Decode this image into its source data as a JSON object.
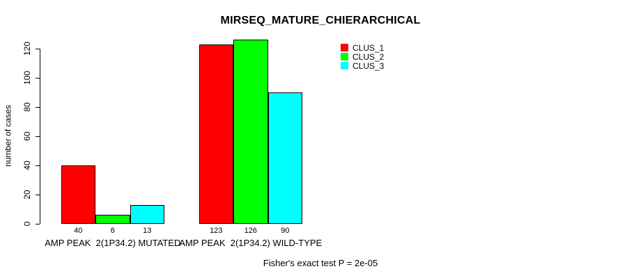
{
  "chart_data": {
    "type": "bar",
    "title": "MIRSEQ_MATURE_CHIERARCHICAL",
    "ylabel": "number of cases",
    "xlabel": "",
    "ylim": [
      0,
      120
    ],
    "yticks": [
      0,
      20,
      40,
      60,
      80,
      100,
      120
    ],
    "grid": false,
    "legend_position": "top-right-inside",
    "bar_border_color": "#000000",
    "background_color": "#ffffff",
    "categories": [
      "AMP PEAK  2(1P34.2) MUTATED",
      "AMP PEAK  2(1P34.2) WILD-TYPE"
    ],
    "series": [
      {
        "name": "CLUS_1",
        "color": "#ff0000",
        "values": [
          40,
          123
        ]
      },
      {
        "name": "CLUS_2",
        "color": "#00ff00",
        "values": [
          6,
          126
        ]
      },
      {
        "name": "CLUS_3",
        "color": "#00ffff",
        "values": [
          13,
          90
        ]
      }
    ],
    "show_value_labels": true,
    "annotation": "Fisher's exact test P = 2e-05"
  }
}
